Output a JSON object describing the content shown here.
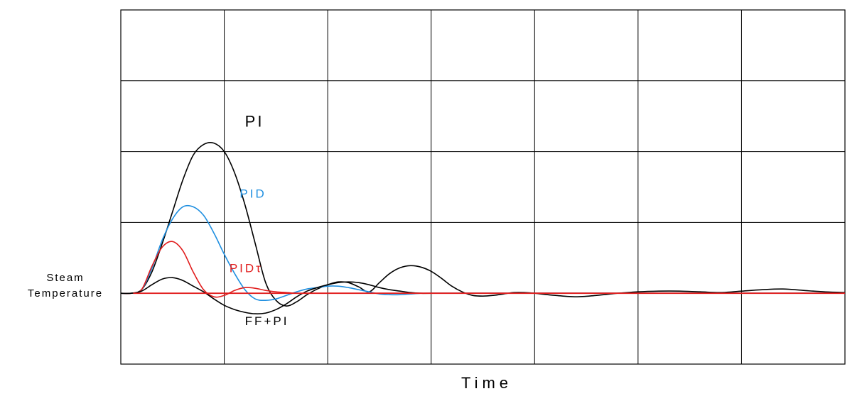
{
  "chart_data": {
    "type": "line",
    "title": "",
    "xlabel": "Time",
    "ylabel_lines": [
      "Steam",
      "Temperature"
    ],
    "xlim": [
      0,
      7
    ],
    "ylim": [
      -1,
      4
    ],
    "grid": true,
    "grid_divisions": {
      "x": 7,
      "y": 5
    },
    "baseline_y": 0,
    "series": [
      {
        "name": "PI",
        "color": "#000000",
        "x": [
          0,
          0.1,
          0.2,
          0.3,
          0.4,
          0.5,
          0.6,
          0.7,
          0.8,
          0.9,
          1.0,
          1.1,
          1.2,
          1.3,
          1.4,
          1.5,
          1.6,
          1.7,
          1.8,
          1.9,
          2.0,
          2.1,
          2.2,
          2.3,
          2.4,
          2.5,
          2.6,
          2.7,
          2.8,
          2.9,
          3.0,
          3.1,
          3.2,
          3.3,
          3.4,
          3.5,
          3.6,
          3.7,
          3.8,
          3.9,
          4.0,
          4.2,
          4.4,
          4.6,
          4.8,
          5.0,
          5.2,
          5.4,
          5.6,
          5.8,
          6.0,
          6.2,
          6.4,
          6.6,
          6.8,
          7.0
        ],
        "y": [
          0,
          0,
          0.05,
          0.3,
          0.7,
          1.15,
          1.6,
          1.95,
          2.1,
          2.12,
          2.0,
          1.7,
          1.25,
          0.7,
          0.15,
          -0.1,
          -0.18,
          -0.12,
          -0.02,
          0.06,
          0.12,
          0.16,
          0.15,
          0.09,
          0.02,
          0.15,
          0.28,
          0.36,
          0.39,
          0.37,
          0.31,
          0.21,
          0.1,
          0.02,
          -0.03,
          -0.04,
          -0.03,
          -0.01,
          0.01,
          0.01,
          0.0,
          -0.03,
          -0.05,
          -0.03,
          0.0,
          0.02,
          0.03,
          0.03,
          0.02,
          0.01,
          0.03,
          0.05,
          0.06,
          0.04,
          0.02,
          0.01
        ]
      },
      {
        "name": "PID",
        "color": "#1f8fe0",
        "x": [
          0,
          0.1,
          0.2,
          0.3,
          0.4,
          0.5,
          0.6,
          0.7,
          0.8,
          0.9,
          1.0,
          1.1,
          1.2,
          1.3,
          1.4,
          1.5,
          1.6,
          1.7,
          1.8,
          1.9,
          2.0,
          2.1,
          2.2,
          2.3,
          2.4,
          2.5,
          2.6,
          2.7,
          2.8,
          2.9,
          3.0,
          3.2,
          3.4,
          3.6,
          3.8,
          4.0,
          4.5,
          5.0,
          5.5,
          6.0,
          6.5,
          7.0
        ],
        "y": [
          0,
          0,
          0.05,
          0.35,
          0.75,
          1.05,
          1.22,
          1.22,
          1.1,
          0.85,
          0.55,
          0.28,
          0.05,
          -0.08,
          -0.1,
          -0.08,
          -0.03,
          0.02,
          0.06,
          0.08,
          0.1,
          0.1,
          0.08,
          0.05,
          0.02,
          -0.01,
          -0.02,
          -0.02,
          -0.01,
          0.0,
          0.0,
          0.0,
          0.0,
          0.0,
          0.0,
          0.0,
          0.0,
          0.0,
          0.0,
          0.0,
          0.0,
          0.0
        ]
      },
      {
        "name": "PIDτ",
        "color": "#e11d1d",
        "x": [
          0,
          0.1,
          0.2,
          0.3,
          0.4,
          0.5,
          0.6,
          0.7,
          0.8,
          0.9,
          1.0,
          1.1,
          1.2,
          1.3,
          1.4,
          1.5,
          1.6,
          1.7,
          1.8,
          2.0,
          2.5,
          3.0,
          4.0,
          5.0,
          6.0,
          7.0
        ],
        "y": [
          0,
          0,
          0.05,
          0.38,
          0.65,
          0.73,
          0.6,
          0.3,
          0.05,
          -0.05,
          -0.03,
          0.04,
          0.08,
          0.07,
          0.04,
          0.02,
          0.01,
          0.0,
          0.0,
          0.0,
          0.0,
          0.0,
          0.0,
          0.0,
          0.0,
          0.0
        ]
      },
      {
        "name": "FF+PI",
        "color": "#000000",
        "x": [
          0,
          0.1,
          0.2,
          0.3,
          0.4,
          0.5,
          0.6,
          0.7,
          0.8,
          0.9,
          1.0,
          1.1,
          1.2,
          1.3,
          1.4,
          1.5,
          1.6,
          1.7,
          1.8,
          1.9,
          2.0,
          2.1,
          2.2,
          2.3,
          2.4,
          2.5,
          2.6,
          2.7,
          2.8,
          2.9,
          3.0,
          3.5,
          4.0,
          4.5,
          5.0,
          5.5,
          6.0,
          6.5,
          7.0
        ],
        "y": [
          0,
          0,
          0.03,
          0.12,
          0.2,
          0.22,
          0.18,
          0.1,
          0.02,
          -0.08,
          -0.17,
          -0.23,
          -0.27,
          -0.29,
          -0.28,
          -0.23,
          -0.15,
          -0.05,
          0.03,
          0.08,
          0.12,
          0.15,
          0.16,
          0.15,
          0.12,
          0.08,
          0.05,
          0.03,
          0.01,
          0.0,
          0.0,
          0.0,
          0.0,
          0.0,
          0.0,
          0.0,
          0.0,
          0.0,
          0.0
        ]
      }
    ],
    "annotations": [
      {
        "text": "PI",
        "x": 1.2,
        "y": 2.35,
        "color": "#000000"
      },
      {
        "text": "PID",
        "x": 1.15,
        "y": 1.35,
        "color": "#1f8fe0"
      },
      {
        "text": "PIDτ",
        "x": 1.05,
        "y": 0.3,
        "color": "#e11d1d"
      },
      {
        "text": "FF+PI",
        "x": 1.2,
        "y": -0.45,
        "color": "#000000"
      }
    ],
    "axis_color": "#000000",
    "baseline_color": "#e11d1d"
  }
}
